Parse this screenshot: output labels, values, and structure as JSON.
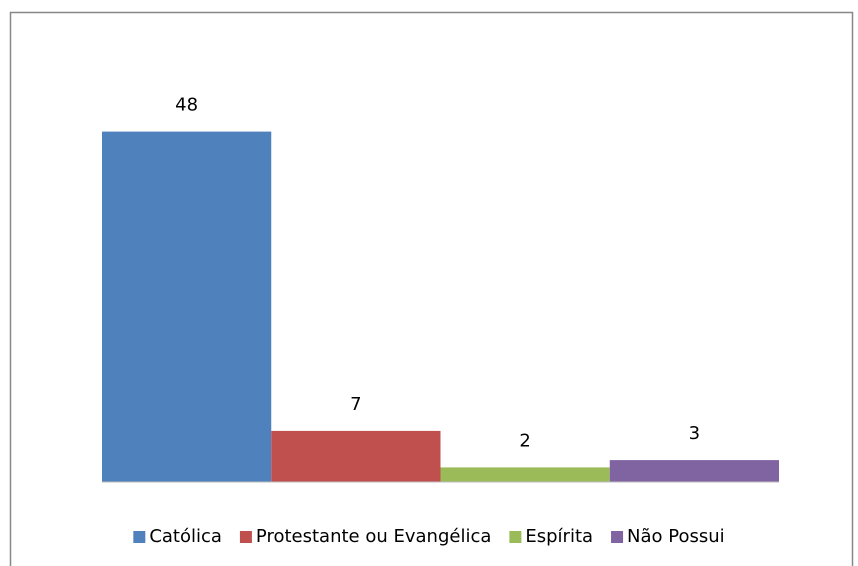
{
  "chart_data": {
    "type": "bar",
    "categories": [
      null
    ],
    "series": [
      {
        "name": "Católica",
        "color": "#4f81bd",
        "values": [
          48
        ]
      },
      {
        "name": "Protestante ou Evangélica",
        "color": "#c0504d",
        "values": [
          7
        ]
      },
      {
        "name": "Espírita",
        "color": "#9bbb59",
        "values": [
          2
        ]
      },
      {
        "name": "Não Possui",
        "color": "#8064a2",
        "values": [
          3
        ]
      }
    ],
    "ylim": [
      0,
      60
    ],
    "legend": "bottom"
  }
}
